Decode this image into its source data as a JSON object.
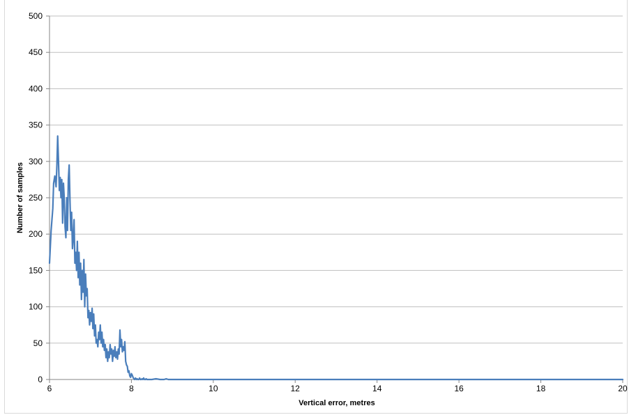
{
  "chart_data": {
    "type": "line",
    "title": "",
    "xlabel": "Vertical error, metres",
    "ylabel": "Number of samples",
    "xlim": [
      6,
      20
    ],
    "ylim": [
      0,
      500
    ],
    "x_ticks": [
      6,
      8,
      10,
      12,
      14,
      16,
      18,
      20
    ],
    "y_ticks": [
      0,
      50,
      100,
      150,
      200,
      250,
      300,
      350,
      400,
      450,
      500
    ],
    "grid": "horizontal",
    "legend": "none",
    "series_color": "#4a7ebb",
    "series": [
      {
        "x": [
          6.0,
          6.04,
          6.08,
          6.1,
          6.13,
          6.16,
          6.18,
          6.2,
          6.22,
          6.24,
          6.26,
          6.28,
          6.3,
          6.32,
          6.34,
          6.36,
          6.38,
          6.4,
          6.42,
          6.44,
          6.46,
          6.48,
          6.5,
          6.52,
          6.54,
          6.56,
          6.58,
          6.6,
          6.62,
          6.64,
          6.66,
          6.68,
          6.7,
          6.72,
          6.74,
          6.76,
          6.78,
          6.8,
          6.82,
          6.84,
          6.86,
          6.88,
          6.9,
          6.92,
          6.94,
          6.96,
          6.98,
          7.0,
          7.02,
          7.04,
          7.06,
          7.08,
          7.1,
          7.12,
          7.14,
          7.16,
          7.18,
          7.2,
          7.22,
          7.24,
          7.26,
          7.28,
          7.3,
          7.32,
          7.34,
          7.36,
          7.38,
          7.4,
          7.42,
          7.44,
          7.46,
          7.48,
          7.5,
          7.52,
          7.54,
          7.56,
          7.58,
          7.6,
          7.62,
          7.64,
          7.66,
          7.68,
          7.7,
          7.72,
          7.74,
          7.76,
          7.78,
          7.8,
          7.82,
          7.84,
          7.86,
          7.88,
          7.9,
          7.92,
          7.94,
          7.96,
          7.98,
          8.0,
          8.02,
          8.04,
          8.06,
          8.08,
          8.1,
          8.12,
          8.14,
          8.16,
          8.18,
          8.2,
          8.22,
          8.24,
          8.26,
          8.28,
          8.3,
          8.32,
          8.34,
          8.36,
          8.38,
          8.4,
          8.45,
          8.5,
          8.6,
          8.7,
          8.75,
          8.8,
          8.85,
          8.9,
          9.0,
          10.0,
          12.0,
          14.0,
          16.0,
          18.0,
          20.0
        ],
        "values": [
          160,
          205,
          235,
          270,
          280,
          265,
          295,
          335,
          300,
          260,
          278,
          250,
          275,
          215,
          270,
          250,
          210,
          195,
          250,
          205,
          275,
          295,
          245,
          205,
          230,
          180,
          195,
          220,
          160,
          175,
          150,
          190,
          140,
          175,
          130,
          160,
          110,
          150,
          120,
          165,
          100,
          145,
          115,
          125,
          85,
          95,
          75,
          92,
          80,
          98,
          70,
          90,
          60,
          75,
          50,
          55,
          45,
          65,
          55,
          75,
          50,
          65,
          45,
          55,
          40,
          48,
          30,
          42,
          25,
          38,
          30,
          48,
          35,
          42,
          25,
          40,
          32,
          45,
          30,
          38,
          28,
          42,
          35,
          68,
          45,
          55,
          38,
          45,
          40,
          52,
          25,
          20,
          18,
          10,
          12,
          5,
          3,
          8,
          6,
          3,
          1,
          0,
          2,
          0,
          1,
          0,
          0,
          2,
          0,
          0,
          1,
          0,
          2,
          0,
          0,
          1,
          0,
          0,
          0,
          0,
          1,
          0,
          0,
          0,
          1,
          0,
          0,
          0,
          0,
          0,
          0,
          0,
          0
        ]
      }
    ]
  }
}
